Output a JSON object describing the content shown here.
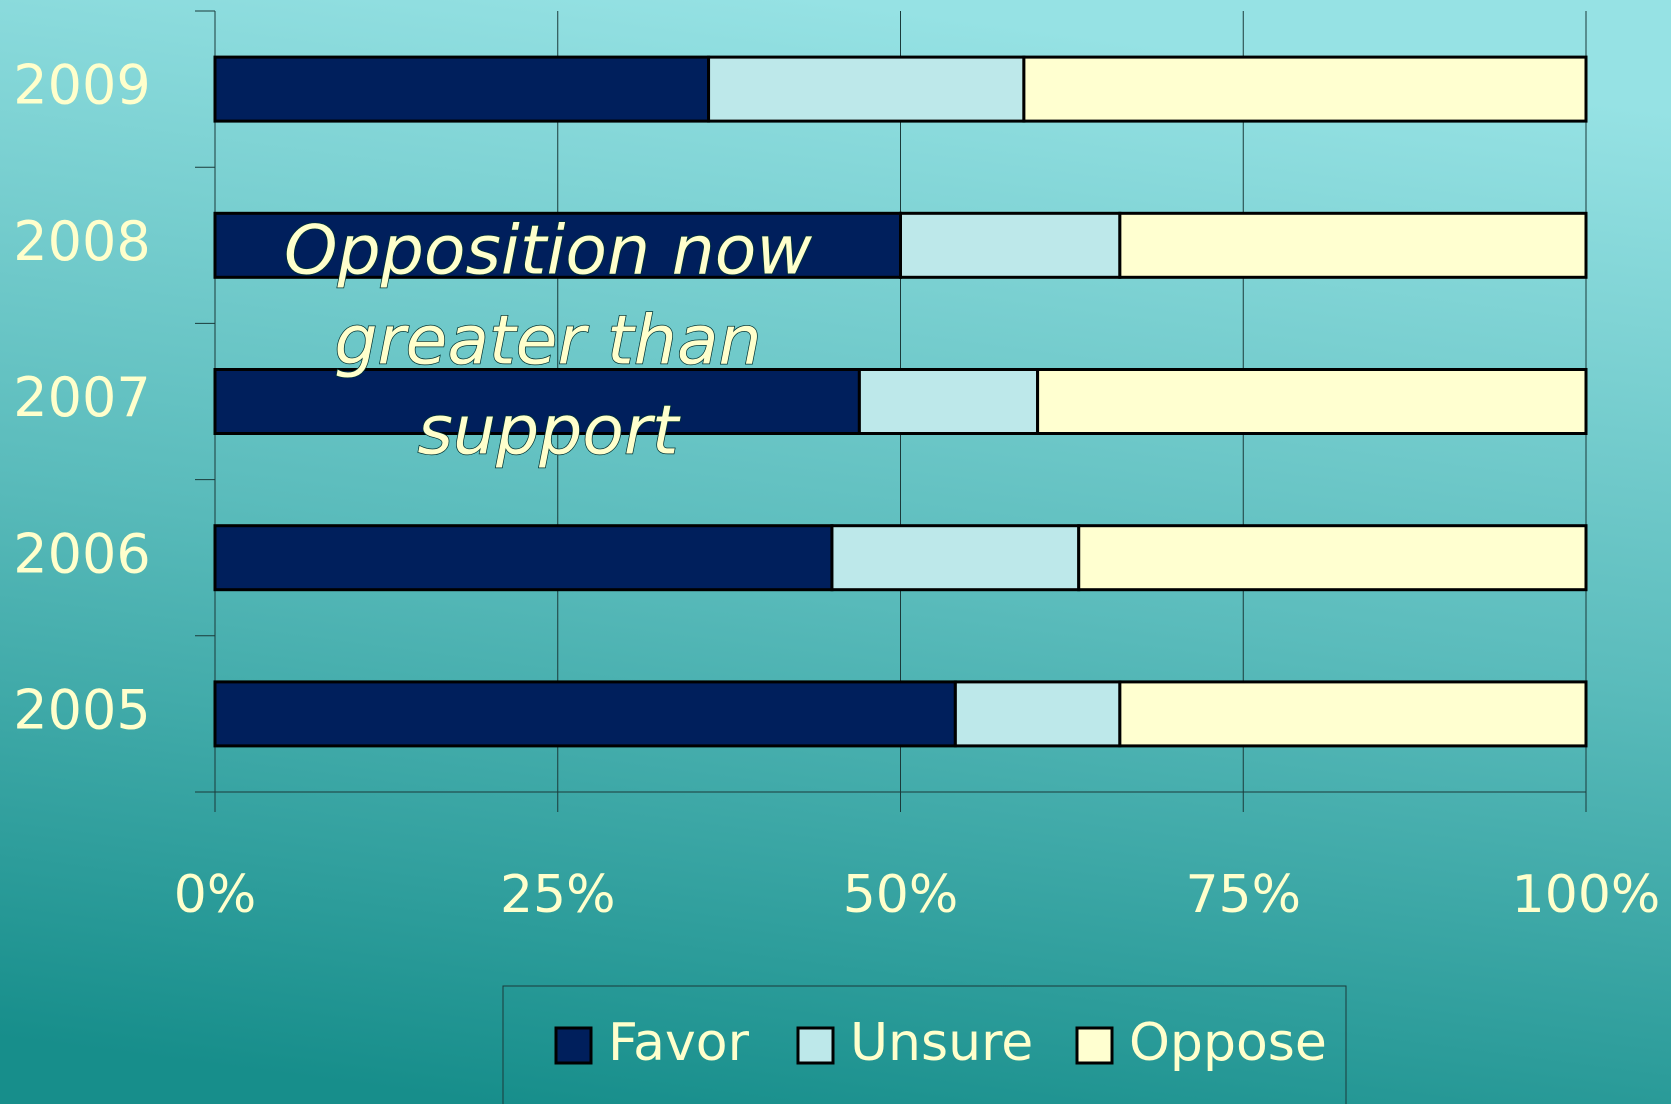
{
  "chart_data": {
    "type": "stacked_bar_horizontal",
    "categories": [
      "2005",
      "2006",
      "2007",
      "2008",
      "2009"
    ],
    "series": [
      {
        "name": "Favor",
        "color": "#001f5c",
        "values": [
          54,
          45,
          47,
          50,
          36
        ]
      },
      {
        "name": "Unsure",
        "color": "#bde8ea",
        "values": [
          12,
          18,
          13,
          16,
          23
        ]
      },
      {
        "name": "Oppose",
        "color": "#ffffd0",
        "values": [
          34,
          37,
          40,
          34,
          41
        ]
      }
    ],
    "xlim": [
      0,
      100
    ],
    "xticks": [
      {
        "value": 0,
        "label": "0%"
      },
      {
        "value": 25,
        "label": "25%"
      },
      {
        "value": 50,
        "label": "50%"
      },
      {
        "value": 75,
        "label": "75%"
      },
      {
        "value": 100,
        "label": "100%"
      }
    ],
    "grid": true,
    "legend": "bottom",
    "annotation": [
      "Opposition  now",
      "greater than",
      "support"
    ]
  }
}
